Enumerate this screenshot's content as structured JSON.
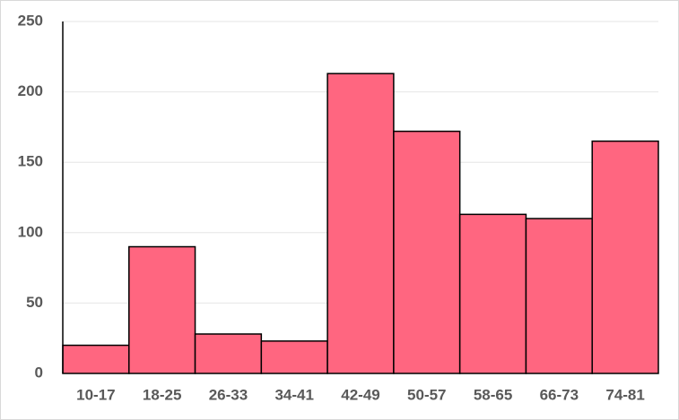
{
  "chart_data": {
    "type": "bar",
    "categories": [
      "10-17",
      "18-25",
      "26-33",
      "34-41",
      "42-49",
      "50-57",
      "58-65",
      "66-73",
      "74-81"
    ],
    "values": [
      20,
      90,
      28,
      23,
      213,
      172,
      113,
      110,
      165
    ],
    "color": "#ff6680",
    "ylim": [
      0,
      250
    ],
    "yticks": [
      0,
      50,
      100,
      150,
      200,
      250
    ],
    "grid": true
  }
}
